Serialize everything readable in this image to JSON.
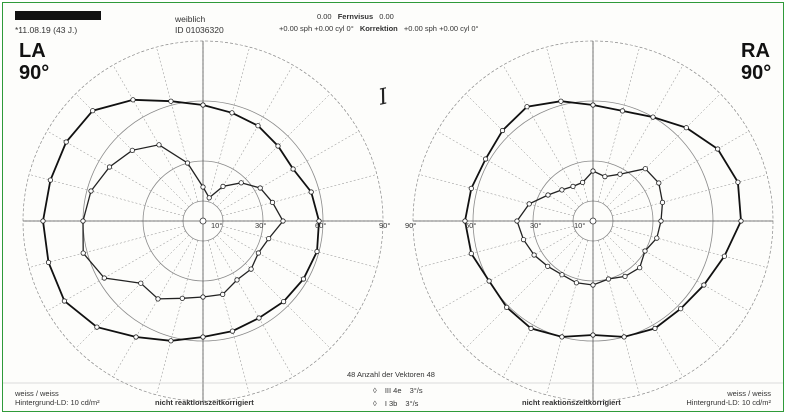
{
  "header": {
    "patient_birth": "*11.08.19",
    "patient_age": "(43 J.)",
    "sex": "weiblich",
    "id": "ID 01036320",
    "fernvisus_label": "Fernvisus",
    "fernvisus_left": "0.00",
    "fernvisus_right": "0.00",
    "correction_left": "+0.00 sph +0.00 cyl 0°",
    "correction_label": "Korrektion",
    "correction_right": "+0.00 sph +0.00 cyl 0°"
  },
  "handwritten_note": "I",
  "left_eye": {
    "label": "LA",
    "angle": "90°",
    "background_color": "weiss / weiss",
    "background_ld": "Hintergrund-LD: 10 cd/m²",
    "footer_note": "nicht reaktionszeitkorrigiert",
    "axis_labels": [
      "10°",
      "30°",
      "60°",
      "90°"
    ]
  },
  "right_eye": {
    "label": "RA",
    "angle": "90°",
    "background_color": "weiss / weiss",
    "background_ld": "Hintergrund-LD: 10 cd/m²",
    "footer_note": "nicht reaktionszeitkorrigiert",
    "axis_labels": [
      "90°",
      "60°",
      "30°",
      "10°"
    ]
  },
  "legend": {
    "vectors": "48 Anzahl der Vektoren 48",
    "items": [
      {
        "stimulus": "III 4e",
        "speed": "3°/s"
      },
      {
        "stimulus": "I 3b",
        "speed": "3°/s"
      }
    ]
  },
  "isopter_colors": {
    "outer": "#111111",
    "inner": "#222222",
    "grid": "#8a8a8a"
  },
  "chart_data": [
    {
      "type": "polar",
      "eye": "LA",
      "series": [
        {
          "name": "III 4e",
          "angles_deg": [
            90,
            75,
            60,
            45,
            30,
            15,
            0,
            -15,
            -30,
            -45,
            -60,
            -75,
            -90,
            -105,
            -120,
            -135,
            -150,
            -165,
            180,
            165,
            150,
            135,
            120,
            105
          ],
          "radii_deg": [
            58,
            56,
            55,
            53,
            52,
            56,
            58,
            59,
            58,
            57,
            56,
            57,
            58,
            62,
            67,
            75,
            80,
            80,
            80,
            79,
            79,
            78,
            70,
            62
          ]
        },
        {
          "name": "I 3b",
          "angles_deg": [
            90,
            75,
            60,
            45,
            30,
            15,
            0,
            -15,
            -30,
            -45,
            -60,
            -75,
            -90,
            -105,
            -120,
            -135,
            -150,
            -165,
            180,
            165,
            150,
            135,
            120,
            105
          ],
          "radii_deg": [
            17,
            12,
            20,
            27,
            33,
            36,
            40,
            34,
            32,
            34,
            34,
            38,
            38,
            40,
            45,
            44,
            57,
            62,
            60,
            58,
            54,
            50,
            44,
            30
          ]
        }
      ]
    },
    {
      "type": "polar",
      "eye": "RA",
      "series": [
        {
          "name": "III 4e",
          "angles_deg": [
            90,
            75,
            60,
            45,
            30,
            15,
            0,
            -15,
            -30,
            -45,
            -60,
            -75,
            -90,
            -105,
            -120,
            -135,
            -150,
            -165,
            180,
            165,
            150,
            135,
            120,
            105
          ],
          "radii_deg": [
            58,
            57,
            60,
            66,
            72,
            75,
            74,
            68,
            64,
            62,
            62,
            60,
            57,
            60,
            62,
            61,
            60,
            63,
            64,
            63,
            62,
            64,
            66,
            62
          ]
        },
        {
          "name": "I 3b",
          "angles_deg": [
            90,
            75,
            60,
            45,
            30,
            15,
            0,
            -15,
            -30,
            -45,
            -60,
            -75,
            -90,
            -105,
            -120,
            -135,
            -150,
            -165,
            180,
            165,
            150,
            135,
            120,
            105
          ],
          "radii_deg": [
            25,
            23,
            27,
            37,
            38,
            36,
            34,
            33,
            30,
            33,
            32,
            30,
            32,
            32,
            31,
            32,
            34,
            36,
            38,
            33,
            26,
            22,
            20,
            20
          ]
        }
      ]
    }
  ]
}
